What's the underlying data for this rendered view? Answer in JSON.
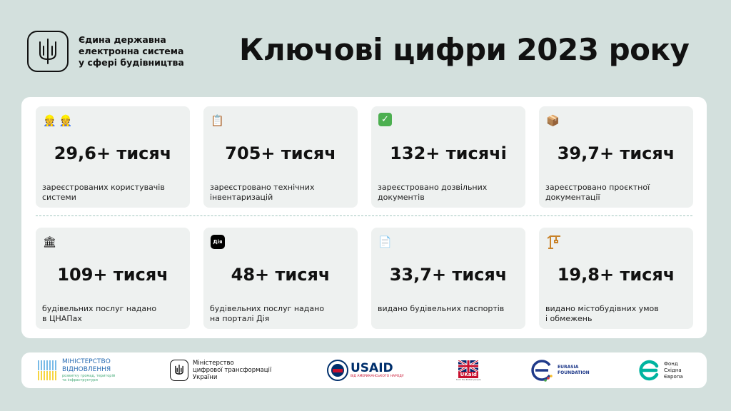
{
  "header": {
    "org_line1": "Єдина державна",
    "org_line2": "електронна система",
    "org_line3": "у сфері будівництва",
    "title": "Ключові цифри 2023 року"
  },
  "stats": [
    {
      "icon": "builders-icon",
      "value": "29,6+ тисяч",
      "desc_line1": "зареєстрованих користувачів",
      "desc_line2": "системи"
    },
    {
      "icon": "clipboard-icon",
      "value": "705+ тисяч",
      "desc_line1": "зареєстровано технічних",
      "desc_line2": "інвентаризацій"
    },
    {
      "icon": "check-mark-icon",
      "value": "132+ тисячі",
      "desc_line1": "зареєстровано дозвільних",
      "desc_line2": "документів"
    },
    {
      "icon": "package-icon",
      "value": "39,7+ тисяч",
      "desc_line1": "зареєстровано проєктної",
      "desc_line2": "документації"
    },
    {
      "icon": "classical-building-icon",
      "value": "109+ тисяч",
      "desc_line1": "будівельних послуг надано",
      "desc_line2": "в ЦНАПах"
    },
    {
      "icon": "dia-app-icon",
      "icon_text": "Дія",
      "value": "48+ тисяч",
      "desc_line1": "будівельних послуг надано",
      "desc_line2": "на порталі Дія"
    },
    {
      "icon": "document-icon",
      "value": "33,7+ тисяч",
      "desc_line1": "видано будівельних паспортів",
      "desc_line2": ""
    },
    {
      "icon": "crane-icon",
      "value": "19,8+ тисяч",
      "desc_line1": "видано містобудівних умов",
      "desc_line2": "і обмежень"
    }
  ],
  "partners": {
    "minrecon": {
      "line1": "МІНІСТЕРСТВО",
      "line2": "ВІДНОВЛЕННЯ",
      "line3": "розвитку громад, територій",
      "line4": "та інфраструктури"
    },
    "mindigital": {
      "line1": "Міністерство",
      "line2": "цифрової трансформації",
      "line3": "України"
    },
    "usaid": {
      "name": "USAID",
      "sub": "ВІД АМЕРИКАНСЬКОГО НАРОДУ"
    },
    "ukaid": {
      "name": "UKaid",
      "sub": "from the British people"
    },
    "eurasia": {
      "line1": "EURASIA",
      "line2": "FOUNDATION"
    },
    "eastfund": {
      "line1": "Фонд",
      "line2": "Східна",
      "line3": "Європа"
    }
  },
  "colors": {
    "background": "#d3e0dd",
    "card": "#eef1f0",
    "divider": "#9fc4bd",
    "usaid_red": "#c8102e",
    "usaid_blue": "#002f6c",
    "eurasia_blue": "#1f3a8a",
    "eastfund_teal": "#00b4a0"
  }
}
